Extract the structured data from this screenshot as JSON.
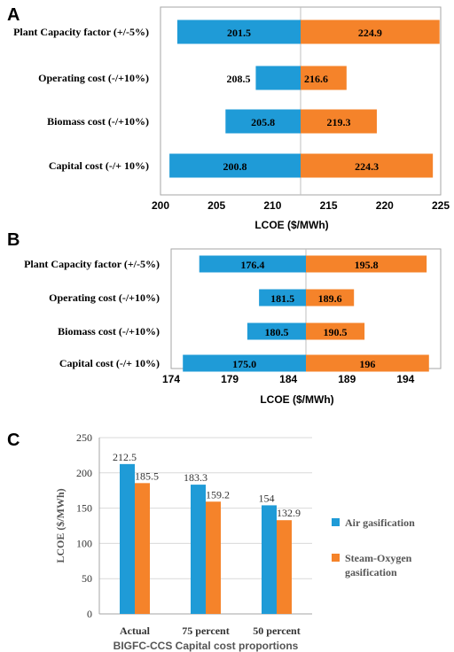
{
  "colors": {
    "air": "#1f9bd7",
    "steam": "#f5832a",
    "axis": "#7f7f7f",
    "grid": "#d9d9d9"
  },
  "chart_data": [
    {
      "type": "bar",
      "orientation": "horizontal-tornado",
      "panel": "A",
      "categories": [
        "Plant Capacity factor (+/-5%)",
        "Operating cost (-/+10%)",
        "Biomass cost (-/+10%)",
        "Capital cost (-/+ 10%)"
      ],
      "baseline": 212.5,
      "series": [
        {
          "values": [
            201.5,
            208.5,
            205.8,
            200.8
          ],
          "labels": [
            "201.5",
            "208.5",
            "205.8",
            "200.8"
          ]
        },
        {
          "values": [
            224.9,
            216.6,
            219.3,
            224.3
          ],
          "labels": [
            "224.9",
            "216.6",
            "219.3",
            "224.3"
          ]
        }
      ],
      "xlabel": "LCOE ($/MWh)",
      "xlim": [
        200,
        225
      ],
      "xticks": [
        "200",
        "205",
        "210",
        "215",
        "220",
        "225"
      ]
    },
    {
      "type": "bar",
      "orientation": "horizontal-tornado",
      "panel": "B",
      "categories": [
        "Plant Capacity factor (+/-5%)",
        "Operating cost (-/+10%)",
        "Biomass cost (-/+10%)",
        "Capital cost (-/+ 10%)"
      ],
      "baseline": 185.5,
      "series": [
        {
          "values": [
            176.4,
            181.5,
            180.5,
            175.0
          ],
          "labels": [
            "176.4",
            "181.5",
            "180.5",
            "175.0"
          ]
        },
        {
          "values": [
            195.8,
            189.6,
            190.5,
            196.0
          ],
          "labels": [
            "195.8",
            "189.6",
            "190.5",
            "196"
          ]
        }
      ],
      "xlabel": "LCOE ($/MWh)",
      "xlim": [
        174,
        197
      ],
      "xticks": [
        "174",
        "179",
        "184",
        "189",
        "194"
      ]
    },
    {
      "type": "bar",
      "panel": "C",
      "categories": [
        "Actual",
        "75 percent",
        "50 percent"
      ],
      "series": [
        {
          "name": "Air gasification",
          "values": [
            212.5,
            183.3,
            154
          ],
          "labels": [
            "212.5",
            "183.3",
            "154"
          ]
        },
        {
          "name": "Steam-Oxygen gasification",
          "values": [
            185.5,
            159.2,
            132.9
          ],
          "labels": [
            "185.5",
            "159.2",
            "132.9"
          ]
        }
      ],
      "xlabel": "BIGFC-CCS Capital cost proportions",
      "ylabel": "LCOE ($/MWh)",
      "ylim": [
        0,
        250
      ],
      "yticks": [
        "0",
        "50",
        "100",
        "150",
        "200",
        "250"
      ],
      "legend": "right",
      "grid": true
    }
  ]
}
